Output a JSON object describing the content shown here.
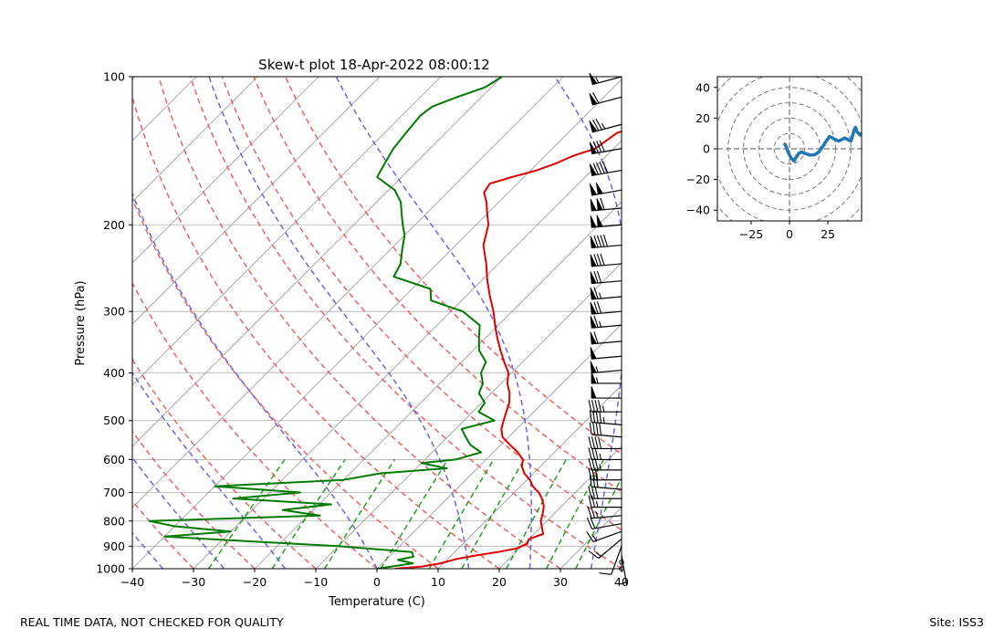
{
  "chart_data": [
    {
      "type": "skew-t",
      "title": "Skew-t plot 18-Apr-2022 08:00:12",
      "xlabel": "Temperature (C)",
      "ylabel": "Pressure (hPa)",
      "xlim": [
        -40,
        40
      ],
      "ylim": [
        1000,
        100
      ],
      "log_y": true,
      "skew_degrees": 45,
      "xticks": [
        -40,
        -30,
        -20,
        -10,
        0,
        10,
        20,
        30,
        40
      ],
      "yticks": [
        100,
        200,
        300,
        400,
        500,
        600,
        700,
        800,
        900,
        1000
      ],
      "grid": true,
      "colors": {
        "temperature": "#e00000",
        "dewpoint": "#007a00",
        "dry_adiabats": "#f06060",
        "moist_adiabats": "#6666ee",
        "mixing_ratio": "#22a022",
        "isotherms": "#999999"
      },
      "series": [
        {
          "name": "temperature",
          "points": [
            [
              1000,
              3.0
            ],
            [
              990,
              7.0
            ],
            [
              975,
              9.5
            ],
            [
              955,
              11.5
            ],
            [
              940,
              14.0
            ],
            [
              925,
              17.0
            ],
            [
              910,
              19.5
            ],
            [
              890,
              20.5
            ],
            [
              870,
              20.0
            ],
            [
              850,
              21.5
            ],
            [
              830,
              20.5
            ],
            [
              800,
              19.0
            ],
            [
              770,
              18.0
            ],
            [
              745,
              17.0
            ],
            [
              720,
              15.5
            ],
            [
              700,
              14.0
            ],
            [
              680,
              12.0
            ],
            [
              660,
              10.5
            ],
            [
              640,
              8.5
            ],
            [
              620,
              7.0
            ],
            [
              600,
              6.0
            ],
            [
              580,
              4.0
            ],
            [
              560,
              1.5
            ],
            [
              540,
              -1.0
            ],
            [
              520,
              -2.5
            ],
            [
              500,
              -3.5
            ],
            [
              480,
              -4.5
            ],
            [
              460,
              -5.5
            ],
            [
              440,
              -7.0
            ],
            [
              420,
              -9.0
            ],
            [
              400,
              -10.5
            ],
            [
              380,
              -13.0
            ],
            [
              360,
              -15.5
            ],
            [
              340,
              -18.0
            ],
            [
              320,
              -20.5
            ],
            [
              300,
              -23.0
            ],
            [
              280,
              -26.0
            ],
            [
              260,
              -29.0
            ],
            [
              240,
              -32.0
            ],
            [
              220,
              -35.5
            ],
            [
              200,
              -38.0
            ],
            [
              190,
              -40.0
            ],
            [
              180,
              -42.0
            ],
            [
              172,
              -44.0
            ],
            [
              165,
              -44.5
            ],
            [
              160,
              -42.0
            ],
            [
              155,
              -39.0
            ],
            [
              150,
              -37.0
            ],
            [
              145,
              -35.5
            ],
            [
              140,
              -33.0
            ],
            [
              130,
              -32.0
            ],
            [
              125,
              -29.0
            ],
            [
              120,
              -27.0
            ],
            [
              115,
              -24.0
            ],
            [
              110,
              -23.5
            ],
            [
              105,
              -21.0
            ],
            [
              100,
              -20.0
            ]
          ]
        },
        {
          "name": "dewpoint",
          "points": [
            [
              1000,
              0.0
            ],
            [
              975,
              5.0
            ],
            [
              960,
              2.0
            ],
            [
              945,
              4.0
            ],
            [
              925,
              3.0
            ],
            [
              900,
              -10.0
            ],
            [
              880,
              -25.0
            ],
            [
              860,
              -40.0
            ],
            [
              840,
              -30.0
            ],
            [
              820,
              -40.0
            ],
            [
              800,
              -45.0
            ],
            [
              780,
              -18.0
            ],
            [
              760,
              -25.0
            ],
            [
              740,
              -18.0
            ],
            [
              720,
              -35.0
            ],
            [
              700,
              -25.0
            ],
            [
              680,
              -40.0
            ],
            [
              660,
              -20.0
            ],
            [
              640,
              -15.0
            ],
            [
              625,
              -5.0
            ],
            [
              610,
              -10.0
            ],
            [
              600,
              -5.0
            ],
            [
              580,
              -2.0
            ],
            [
              560,
              -5.0
            ],
            [
              540,
              -7.0
            ],
            [
              520,
              -9.0
            ],
            [
              500,
              -5.0
            ],
            [
              480,
              -9.0
            ],
            [
              460,
              -9.5
            ],
            [
              440,
              -12.0
            ],
            [
              420,
              -13.0
            ],
            [
              400,
              -15.0
            ],
            [
              380,
              -16.0
            ],
            [
              360,
              -19.0
            ],
            [
              340,
              -21.0
            ],
            [
              320,
              -23.0
            ],
            [
              300,
              -28.0
            ],
            [
              285,
              -35.0
            ],
            [
              270,
              -37.0
            ],
            [
              255,
              -45.0
            ],
            [
              240,
              -46.0
            ],
            [
              225,
              -48.0
            ],
            [
              210,
              -50.0
            ],
            [
              200,
              -52.0
            ],
            [
              190,
              -54.0
            ],
            [
              180,
              -56.0
            ],
            [
              170,
              -59.0
            ],
            [
              160,
              -64.0
            ],
            [
              150,
              -65.0
            ],
            [
              140,
              -66.0
            ],
            [
              130,
              -66.5
            ],
            [
              120,
              -67.0
            ],
            [
              115,
              -66.5
            ],
            [
              110,
              -64.0
            ],
            [
              105,
              -61.0
            ],
            [
              100,
              -60.0
            ]
          ]
        }
      ],
      "dry_adiabats_theta_C": [
        -40,
        -30,
        -20,
        -10,
        0,
        10,
        20,
        30,
        40,
        50,
        60,
        70
      ],
      "moist_adiabats_base_C": [
        -40,
        -35,
        -25,
        -15,
        0,
        15,
        25,
        35
      ],
      "mixing_ratio_lines_gkg": [
        0.4,
        1,
        2,
        4,
        7,
        10,
        16,
        24,
        32
      ],
      "wind_barbs": {
        "units": "kt",
        "levels": [
          {
            "p": 1000,
            "speed": 3,
            "dir": 130
          },
          {
            "p": 970,
            "speed": 3,
            "dir": 140
          },
          {
            "p": 940,
            "speed": 5,
            "dir": 170
          },
          {
            "p": 900,
            "speed": 10,
            "dir": 200
          },
          {
            "p": 870,
            "speed": 15,
            "dir": 230
          },
          {
            "p": 840,
            "speed": 15,
            "dir": 250
          },
          {
            "p": 810,
            "speed": 20,
            "dir": 260
          },
          {
            "p": 780,
            "speed": 25,
            "dir": 265
          },
          {
            "p": 750,
            "speed": 25,
            "dir": 270
          },
          {
            "p": 720,
            "speed": 30,
            "dir": 270
          },
          {
            "p": 690,
            "speed": 30,
            "dir": 275
          },
          {
            "p": 660,
            "speed": 30,
            "dir": 270
          },
          {
            "p": 630,
            "speed": 35,
            "dir": 270
          },
          {
            "p": 600,
            "speed": 35,
            "dir": 270
          },
          {
            "p": 570,
            "speed": 40,
            "dir": 270
          },
          {
            "p": 540,
            "speed": 40,
            "dir": 275
          },
          {
            "p": 510,
            "speed": 45,
            "dir": 275
          },
          {
            "p": 480,
            "speed": 45,
            "dir": 270
          },
          {
            "p": 450,
            "speed": 50,
            "dir": 270
          },
          {
            "p": 420,
            "speed": 55,
            "dir": 270
          },
          {
            "p": 395,
            "speed": 55,
            "dir": 265
          },
          {
            "p": 370,
            "speed": 50,
            "dir": 265
          },
          {
            "p": 345,
            "speed": 60,
            "dir": 265
          },
          {
            "p": 320,
            "speed": 65,
            "dir": 265
          },
          {
            "p": 300,
            "speed": 70,
            "dir": 265
          },
          {
            "p": 280,
            "speed": 65,
            "dir": 265
          },
          {
            "p": 260,
            "speed": 70,
            "dir": 265
          },
          {
            "p": 240,
            "speed": 80,
            "dir": 265
          },
          {
            "p": 220,
            "speed": 90,
            "dir": 265
          },
          {
            "p": 200,
            "speed": 100,
            "dir": 265
          },
          {
            "p": 185,
            "speed": 110,
            "dir": 265
          },
          {
            "p": 170,
            "speed": 100,
            "dir": 260
          },
          {
            "p": 155,
            "speed": 90,
            "dir": 260
          },
          {
            "p": 140,
            "speed": 80,
            "dir": 260
          },
          {
            "p": 125,
            "speed": 75,
            "dir": 255
          },
          {
            "p": 110,
            "speed": 60,
            "dir": 255
          },
          {
            "p": 100,
            "speed": 55,
            "dir": 255
          }
        ]
      }
    },
    {
      "type": "hodograph",
      "xlim": [
        -47,
        47
      ],
      "ylim": [
        -47,
        47
      ],
      "xticks": [
        -25,
        0,
        25
      ],
      "yticks": [
        -40,
        -20,
        0,
        20,
        40
      ],
      "rings": [
        10,
        20,
        30,
        40,
        50,
        60
      ],
      "color": "#1f77b4",
      "u": [
        -3,
        -2,
        -1,
        0,
        1,
        3,
        4,
        6,
        8,
        10,
        13,
        16,
        18,
        20,
        22,
        24,
        26,
        28,
        30,
        32,
        34,
        36,
        38,
        40,
        41,
        42,
        43,
        44,
        46,
        47
      ],
      "v": [
        3,
        1,
        -2,
        -4,
        -6,
        -8,
        -6,
        -3,
        -2,
        -3,
        -4,
        -4,
        -3,
        -1,
        2,
        5,
        8,
        7,
        6,
        5,
        6,
        7,
        6,
        5,
        8,
        12,
        14,
        11,
        9,
        10
      ]
    }
  ],
  "footer": {
    "left": "REAL TIME DATA, NOT CHECKED FOR QUALITY",
    "right": "Site: ISS3"
  }
}
